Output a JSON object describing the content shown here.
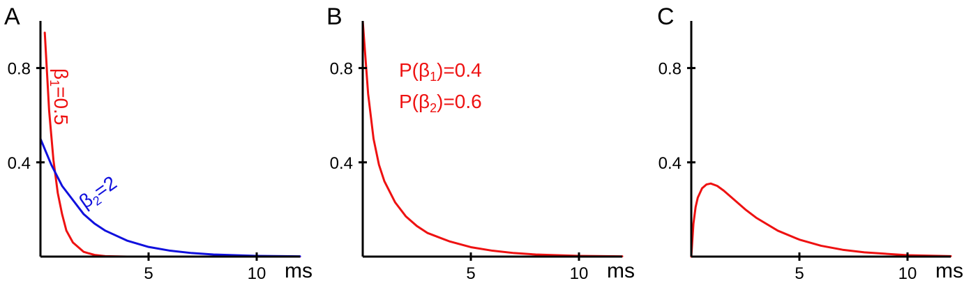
{
  "chart_data": [
    {
      "panel": "A",
      "type": "line",
      "x_unit": "ms",
      "xlim": [
        0,
        12
      ],
      "ylim": [
        0,
        1
      ],
      "x_ticks": [
        5,
        10
      ],
      "y_ticks": [
        0.4,
        0.8
      ],
      "series": [
        {
          "label_prefix": "β",
          "label_sub": "1",
          "label_suffix": "=0.5",
          "color": "#ee1111",
          "x": [
            0.2,
            0.4,
            0.6,
            0.8,
            1.0,
            1.2,
            1.5,
            2.0,
            2.5,
            3.0,
            4.0,
            5.0,
            6.0,
            8.0,
            10.0,
            12.0
          ],
          "y": [
            0.95,
            0.62,
            0.41,
            0.27,
            0.18,
            0.11,
            0.06,
            0.02,
            0.007,
            0.002,
            0.0,
            0.0,
            0.0,
            0.0,
            0.0,
            0.0
          ]
        },
        {
          "label_prefix": "β",
          "label_sub": "2",
          "label_suffix": "=2",
          "color": "#1010dd",
          "x": [
            0,
            0.5,
            1.0,
            1.5,
            2.0,
            2.5,
            3.0,
            4.0,
            5.0,
            6.0,
            7.0,
            8.0,
            10.0,
            12.0
          ],
          "y": [
            0.5,
            0.39,
            0.3,
            0.24,
            0.18,
            0.14,
            0.11,
            0.068,
            0.041,
            0.025,
            0.015,
            0.009,
            0.003,
            0.001
          ]
        }
      ]
    },
    {
      "panel": "B",
      "type": "line",
      "x_unit": "ms",
      "xlim": [
        0,
        12
      ],
      "ylim": [
        0,
        1
      ],
      "x_ticks": [
        5,
        10
      ],
      "y_ticks": [
        0.4,
        0.8
      ],
      "annotations": [
        {
          "prefix": "P(β",
          "sub": "1",
          "suffix": ")=0.4"
        },
        {
          "prefix": "P(β",
          "sub": "2",
          "suffix": ")=0.6"
        }
      ],
      "series": [
        {
          "color": "#ee1111",
          "x": [
            0,
            0.25,
            0.5,
            0.75,
            1.0,
            1.5,
            2.0,
            2.5,
            3.0,
            4.0,
            5.0,
            6.0,
            7.0,
            8.0,
            10.0,
            12.0
          ],
          "y": [
            1.0,
            0.69,
            0.5,
            0.39,
            0.32,
            0.23,
            0.17,
            0.13,
            0.1,
            0.065,
            0.04,
            0.025,
            0.015,
            0.009,
            0.003,
            0.001
          ]
        }
      ]
    },
    {
      "panel": "C",
      "type": "line",
      "x_unit": "ms",
      "xlim": [
        0,
        12
      ],
      "ylim": [
        0,
        1
      ],
      "x_ticks": [
        5,
        10
      ],
      "y_ticks": [
        0.4,
        0.8
      ],
      "series": [
        {
          "color": "#ee1111",
          "x": [
            0,
            0.1,
            0.2,
            0.3,
            0.5,
            0.7,
            0.9,
            1.2,
            1.5,
            2.0,
            2.5,
            3.0,
            4.0,
            5.0,
            6.0,
            7.0,
            8.0,
            10.0,
            12.0
          ],
          "y": [
            0.0,
            0.14,
            0.21,
            0.25,
            0.29,
            0.306,
            0.31,
            0.3,
            0.28,
            0.24,
            0.2,
            0.165,
            0.11,
            0.072,
            0.046,
            0.029,
            0.018,
            0.006,
            0.002
          ]
        }
      ]
    }
  ]
}
